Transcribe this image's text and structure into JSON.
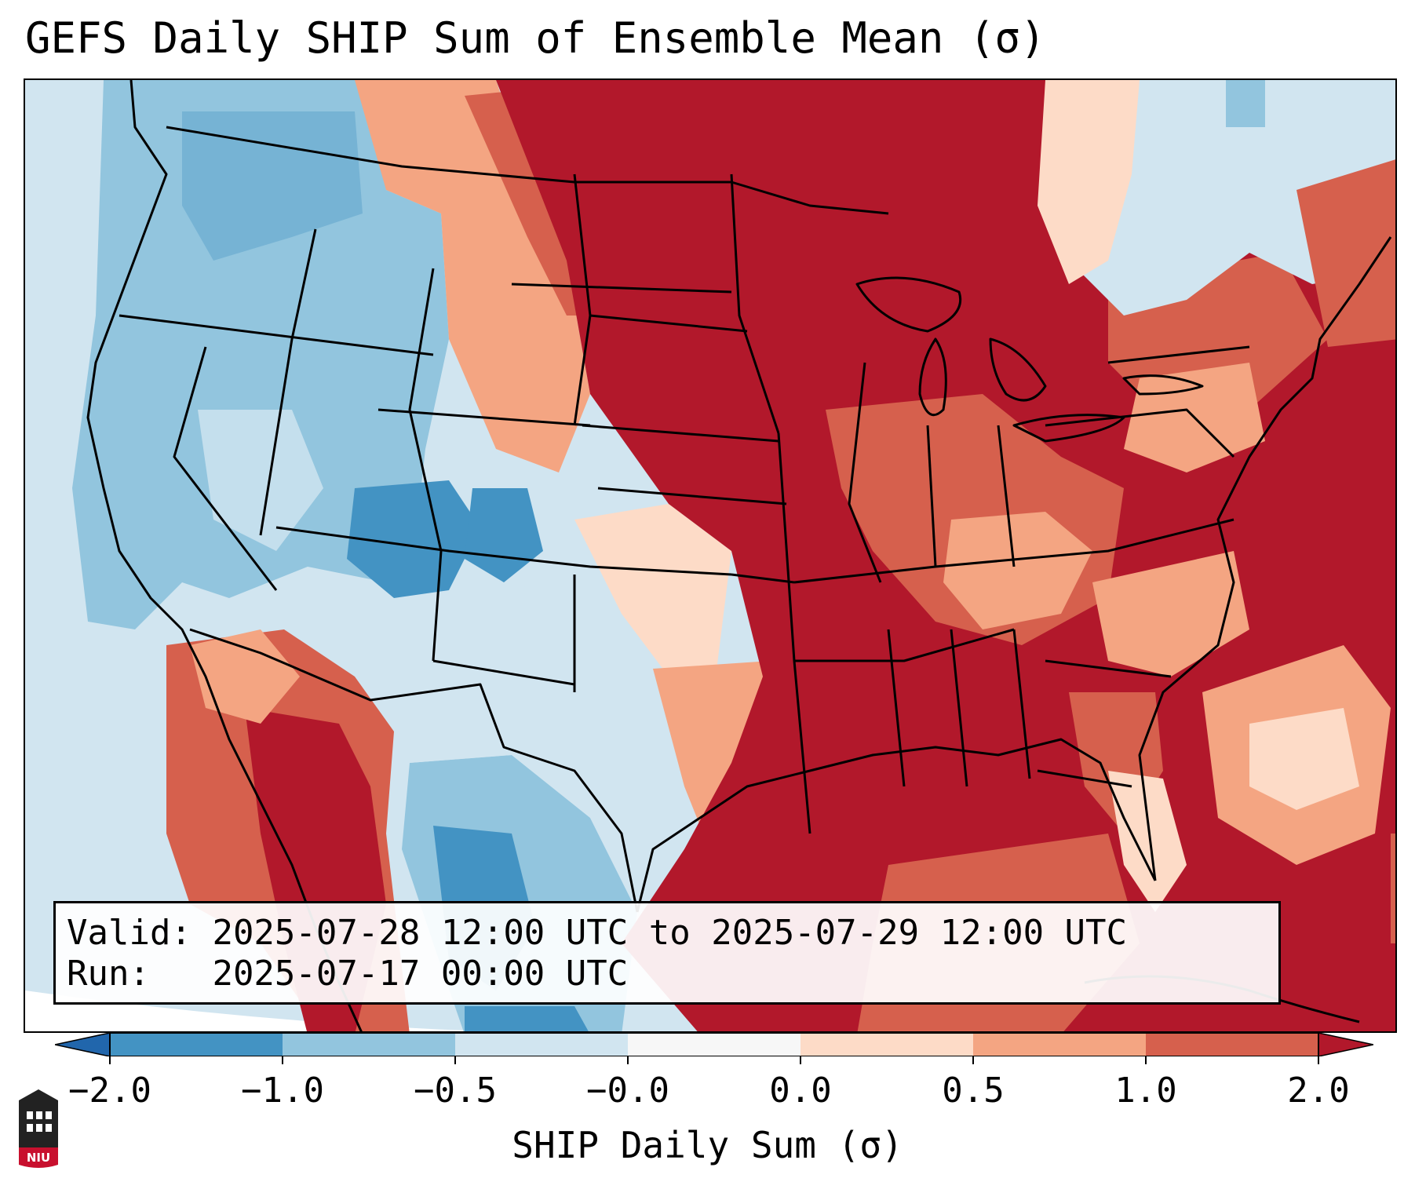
{
  "title": "GEFS Daily SHIP Sum of Ensemble Mean (σ)",
  "info": {
    "valid_label": "Valid:",
    "valid_value": "2025-07-28 12:00 UTC to 2025-07-29 12:00 UTC",
    "run_label": "Run:",
    "run_value": "2025-07-17 00:00 UTC"
  },
  "colorbar": {
    "label": "SHIP Daily Sum (σ)",
    "tick_labels": [
      "−2.0",
      "−1.0",
      "−0.5",
      "−0.0",
      "0.0",
      "0.5",
      "1.0",
      "2.0"
    ],
    "colors": [
      "#2166ac",
      "#4393c3",
      "#92c5de",
      "#d1e5f0",
      "#f7f7f7",
      "#fddbc7",
      "#f4a582",
      "#d6604d",
      "#b2182b"
    ],
    "extend": "both"
  },
  "map": {
    "region": "Contiguous United States",
    "palette": {
      "strong_negative": "#4393c3",
      "negative": "#92c5de",
      "weak_negative": "#d1e5f0",
      "neutral": "#f7f7f7",
      "weak_positive": "#fddbc7",
      "positive": "#f4a582",
      "moderate_positive": "#d6604d",
      "strong_positive": "#b2182b"
    }
  },
  "logo": {
    "text": "NIU"
  }
}
